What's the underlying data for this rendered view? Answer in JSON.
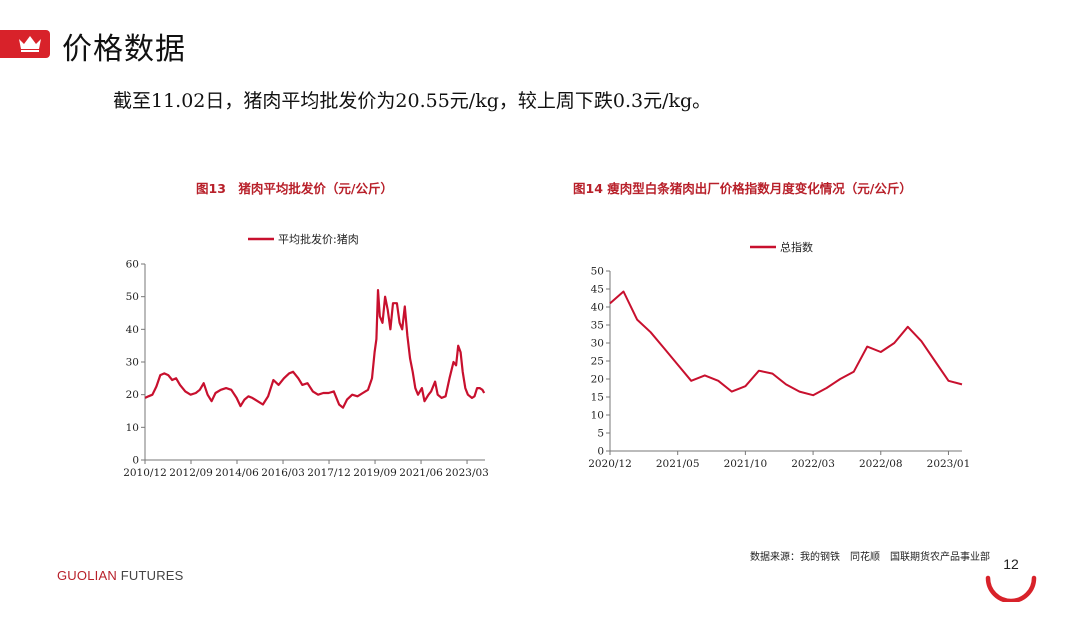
{
  "header": {
    "title": "价格数据",
    "summary": "截至11.02日，猪肉平均批发价为20.55元/kg，较上周下跌0.3元/kg。"
  },
  "colors": {
    "accent": "#d8222a",
    "series": "#c8102e"
  },
  "chart_data": [
    {
      "type": "line",
      "title": "图13　猪肉平均批发价（元/公斤）",
      "legend": "平均批发价:猪肉",
      "legend_position": "top-center",
      "xlabel": "",
      "ylabel": "",
      "ylim": [
        0,
        60
      ],
      "yticks": [
        0,
        10,
        20,
        30,
        40,
        50,
        60
      ],
      "xlim": [
        2010.917,
        2023.85
      ],
      "xticks": [
        {
          "label": "2010/12",
          "x": 2010.917
        },
        {
          "label": "2012/09",
          "x": 2012.667
        },
        {
          "label": "2014/06",
          "x": 2014.417
        },
        {
          "label": "2016/03",
          "x": 2016.167
        },
        {
          "label": "2017/12",
          "x": 2017.917
        },
        {
          "label": "2019/09",
          "x": 2019.667
        },
        {
          "label": "2021/06",
          "x": 2021.417
        },
        {
          "label": "2023/03",
          "x": 2023.167
        }
      ],
      "series": [
        {
          "values": [
            [
              2010.92,
              19
            ],
            [
              2011.05,
              19.5
            ],
            [
              2011.2,
              20
            ],
            [
              2011.35,
              22.5
            ],
            [
              2011.5,
              26
            ],
            [
              2011.65,
              26.5
            ],
            [
              2011.8,
              26
            ],
            [
              2011.95,
              24.5
            ],
            [
              2012.1,
              25
            ],
            [
              2012.25,
              23
            ],
            [
              2012.45,
              21
            ],
            [
              2012.65,
              20
            ],
            [
              2012.85,
              20.5
            ],
            [
              2013.0,
              21.5
            ],
            [
              2013.15,
              23.5
            ],
            [
              2013.3,
              20
            ],
            [
              2013.45,
              18
            ],
            [
              2013.6,
              20.5
            ],
            [
              2013.8,
              21.5
            ],
            [
              2014.0,
              22
            ],
            [
              2014.2,
              21.5
            ],
            [
              2014.4,
              19
            ],
            [
              2014.55,
              16.5
            ],
            [
              2014.7,
              18.5
            ],
            [
              2014.85,
              19.5
            ],
            [
              2015.0,
              19
            ],
            [
              2015.2,
              18
            ],
            [
              2015.4,
              17
            ],
            [
              2015.6,
              19.5
            ],
            [
              2015.8,
              24.5
            ],
            [
              2016.0,
              23
            ],
            [
              2016.2,
              25
            ],
            [
              2016.4,
              26.5
            ],
            [
              2016.55,
              27
            ],
            [
              2016.75,
              25
            ],
            [
              2016.9,
              23
            ],
            [
              2017.1,
              23.5
            ],
            [
              2017.3,
              21
            ],
            [
              2017.5,
              20
            ],
            [
              2017.7,
              20.5
            ],
            [
              2017.9,
              20.5
            ],
            [
              2018.1,
              21
            ],
            [
              2018.3,
              17
            ],
            [
              2018.45,
              16
            ],
            [
              2018.6,
              18.5
            ],
            [
              2018.8,
              20
            ],
            [
              2019.0,
              19.5
            ],
            [
              2019.2,
              20.5
            ],
            [
              2019.4,
              21.5
            ],
            [
              2019.55,
              25
            ],
            [
              2019.65,
              33
            ],
            [
              2019.72,
              37
            ],
            [
              2019.78,
              52
            ],
            [
              2019.85,
              44
            ],
            [
              2019.95,
              42
            ],
            [
              2020.05,
              50
            ],
            [
              2020.15,
              46
            ],
            [
              2020.25,
              40
            ],
            [
              2020.35,
              48
            ],
            [
              2020.5,
              48
            ],
            [
              2020.6,
              42
            ],
            [
              2020.7,
              40
            ],
            [
              2020.8,
              47
            ],
            [
              2020.9,
              38
            ],
            [
              2021.0,
              31
            ],
            [
              2021.1,
              27
            ],
            [
              2021.2,
              22
            ],
            [
              2021.3,
              20
            ],
            [
              2021.45,
              22
            ],
            [
              2021.55,
              18
            ],
            [
              2021.7,
              20
            ],
            [
              2021.8,
              21
            ],
            [
              2021.95,
              24
            ],
            [
              2022.05,
              20
            ],
            [
              2022.2,
              19
            ],
            [
              2022.35,
              19.5
            ],
            [
              2022.5,
              25
            ],
            [
              2022.65,
              30
            ],
            [
              2022.75,
              29
            ],
            [
              2022.83,
              35
            ],
            [
              2022.92,
              33
            ],
            [
              2023.0,
              27
            ],
            [
              2023.1,
              22
            ],
            [
              2023.2,
              20
            ],
            [
              2023.35,
              19
            ],
            [
              2023.45,
              19.5
            ],
            [
              2023.55,
              22
            ],
            [
              2023.65,
              22
            ],
            [
              2023.75,
              21.5
            ],
            [
              2023.82,
              20.5
            ]
          ]
        }
      ]
    },
    {
      "type": "line",
      "title": "图14 瘦肉型白条猪肉出厂价格指数月度变化情况（元/公斤）",
      "legend": "总指数",
      "legend_position": "top-center",
      "xlabel": "",
      "ylabel": "",
      "ylim": [
        0,
        50
      ],
      "yticks": [
        0,
        5,
        10,
        15,
        20,
        25,
        30,
        35,
        40,
        45,
        50
      ],
      "xticks": [
        {
          "label": "2020/12",
          "index": 0
        },
        {
          "label": "2021/05",
          "index": 5
        },
        {
          "label": "2021/10",
          "index": 10
        },
        {
          "label": "2022/03",
          "index": 15
        },
        {
          "label": "2022/08",
          "index": 20
        },
        {
          "label": "2023/01",
          "index": 25
        }
      ],
      "series": [
        {
          "values": [
            41,
            44.3,
            36.5,
            33,
            28.5,
            24,
            19.5,
            21,
            19.5,
            16.5,
            18,
            22.3,
            21.5,
            18.5,
            16.5,
            15.5,
            17.5,
            20,
            22,
            29,
            27.5,
            30,
            34.5,
            30.5,
            25,
            19.5,
            18.5
          ]
        }
      ]
    }
  ],
  "footer": {
    "source": "数据来源：我的钢铁　同花顺　国联期货农产品事业部",
    "brand_bold": "GUOLIAN",
    "brand_light": " FUTURES",
    "page_number": "12"
  }
}
